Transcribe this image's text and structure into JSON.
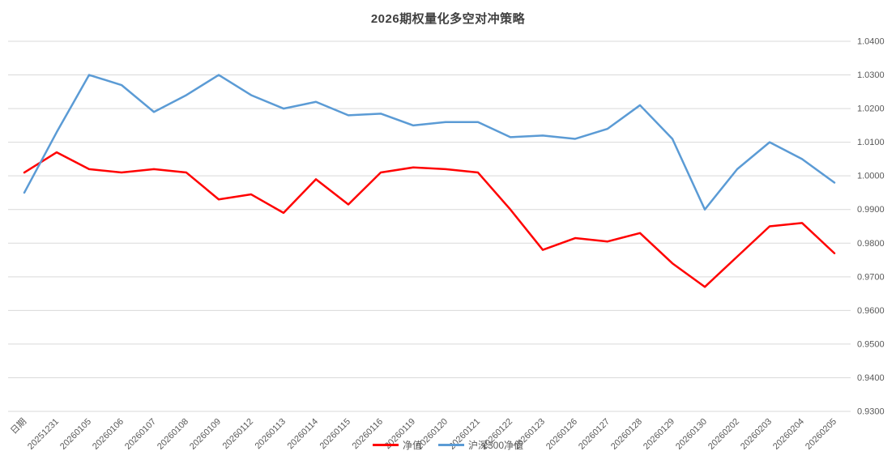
{
  "chart_data": {
    "type": "line",
    "title": "2026期权量化多空对冲策略",
    "categories": [
      "日期",
      "20251231",
      "20260105",
      "20260106",
      "20260107",
      "20260108",
      "20260109",
      "20260112",
      "20260113",
      "20260114",
      "20260115",
      "20260116",
      "20260119",
      "20260120",
      "20260121",
      "20260122",
      "20260123",
      "20260126",
      "20260127",
      "20260128",
      "20260129",
      "20260130",
      "20260202",
      "20260203",
      "20260204",
      "20260205"
    ],
    "series": [
      {
        "name": "净值",
        "color": "#FF0000",
        "values": [
          1.001,
          1.007,
          1.002,
          1.001,
          1.002,
          1.001,
          0.993,
          0.9945,
          0.989,
          0.999,
          0.9915,
          1.001,
          1.0025,
          1.002,
          1.001,
          0.99,
          0.978,
          0.9815,
          0.9805,
          0.983,
          0.974,
          0.967,
          0.976,
          0.985,
          0.986,
          0.977
        ]
      },
      {
        "name": "沪深300净值",
        "color": "#5B9BD5",
        "values": [
          0.995,
          1.013,
          1.03,
          1.027,
          1.019,
          1.024,
          1.03,
          1.024,
          1.02,
          1.022,
          1.018,
          1.0185,
          1.015,
          1.016,
          1.016,
          1.0115,
          1.012,
          1.011,
          1.014,
          1.021,
          1.011,
          0.99,
          1.002,
          1.01,
          1.005,
          0.998
        ]
      }
    ],
    "y_ticks": [
      "1.0400",
      "1.0300",
      "1.0200",
      "1.0100",
      "1.0000",
      "0.9900",
      "0.9800",
      "0.9700",
      "0.9600",
      "0.9500",
      "0.9400",
      "0.9300"
    ],
    "ylim": [
      0.93,
      1.04
    ],
    "grid": "horizontal",
    "legend_position": "bottom",
    "x_label_rotation": 45,
    "colors": {
      "gridline": "#D9D9D9",
      "axis_text": "#595959",
      "title_text": "#404040"
    }
  }
}
